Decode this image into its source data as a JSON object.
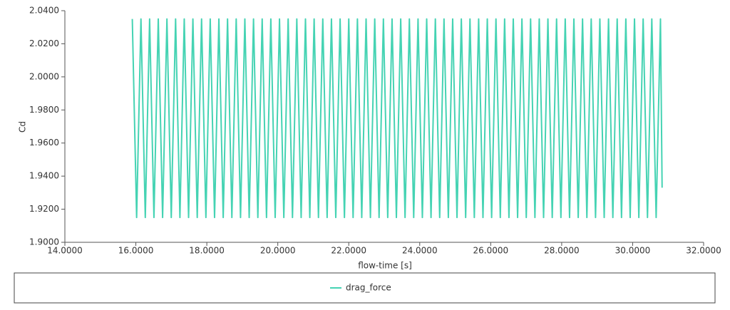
{
  "chart_data": {
    "type": "line",
    "x_label": "flow-time [s]",
    "y_label": "Cd",
    "x": [
      15.9,
      16.022,
      16.144,
      16.266,
      16.388,
      16.51,
      16.632,
      16.754,
      16.876,
      16.998,
      17.12,
      17.242,
      17.364,
      17.486,
      17.608,
      17.73,
      17.852,
      17.974,
      18.096,
      18.218,
      18.34,
      18.462,
      18.584,
      18.706,
      18.828,
      18.95,
      19.072,
      19.194,
      19.316,
      19.438,
      19.56,
      19.682,
      19.804,
      19.926,
      20.048,
      20.17,
      20.292,
      20.414,
      20.536,
      20.658,
      20.78,
      20.902,
      21.024,
      21.146,
      21.268,
      21.39,
      21.512,
      21.634,
      21.756,
      21.878,
      22.0,
      22.122,
      22.244,
      22.366,
      22.488,
      22.61,
      22.732,
      22.854,
      22.976,
      23.098,
      23.22,
      23.342,
      23.464,
      23.586,
      23.708,
      23.83,
      23.952,
      24.074,
      24.196,
      24.318,
      24.44,
      24.562,
      24.684,
      24.806,
      24.928,
      25.05,
      25.172,
      25.294,
      25.416,
      25.538,
      25.66,
      25.782,
      25.904,
      26.026,
      26.148,
      26.27,
      26.392,
      26.514,
      26.636,
      26.758,
      26.88,
      27.002,
      27.124,
      27.246,
      27.368,
      27.49,
      27.612,
      27.734,
      27.856,
      27.978,
      28.1,
      28.222,
      28.344,
      28.466,
      28.588,
      28.71,
      28.832,
      28.954,
      29.076,
      29.198,
      29.32,
      29.442,
      29.564,
      29.686,
      29.808,
      29.93,
      30.052,
      30.174,
      30.296,
      30.418,
      30.54,
      30.662,
      30.784,
      30.83
    ],
    "series": [
      {
        "name": "drag_force",
        "color": "#45d3b3",
        "values": [
          2.035,
          1.915,
          2.035,
          1.915,
          2.035,
          1.915,
          2.035,
          1.915,
          2.035,
          1.915,
          2.035,
          1.915,
          2.035,
          1.915,
          2.035,
          1.915,
          2.035,
          1.915,
          2.035,
          1.915,
          2.035,
          1.915,
          2.035,
          1.915,
          2.035,
          1.915,
          2.035,
          1.915,
          2.035,
          1.915,
          2.035,
          1.915,
          2.035,
          1.915,
          2.035,
          1.915,
          2.035,
          1.915,
          2.035,
          1.915,
          2.035,
          1.915,
          2.035,
          1.915,
          2.035,
          1.915,
          2.035,
          1.915,
          2.035,
          1.915,
          2.035,
          1.915,
          2.035,
          1.915,
          2.035,
          1.915,
          2.035,
          1.915,
          2.035,
          1.915,
          2.035,
          1.915,
          2.035,
          1.915,
          2.035,
          1.915,
          2.035,
          1.915,
          2.035,
          1.915,
          2.035,
          1.915,
          2.035,
          1.915,
          2.035,
          1.915,
          2.035,
          1.915,
          2.035,
          1.915,
          2.035,
          1.915,
          2.035,
          1.915,
          2.035,
          1.915,
          2.035,
          1.915,
          2.035,
          1.915,
          2.035,
          1.915,
          2.035,
          1.915,
          2.035,
          1.915,
          2.035,
          1.915,
          2.035,
          1.915,
          2.035,
          1.915,
          2.035,
          1.915,
          2.035,
          1.915,
          2.035,
          1.915,
          2.035,
          1.915,
          2.035,
          1.915,
          2.035,
          1.915,
          2.035,
          1.915,
          2.035,
          1.915,
          2.035,
          1.915,
          2.035,
          1.915,
          2.035,
          1.933
        ]
      }
    ],
    "xlim": [
      14,
      32
    ],
    "xticks": [
      {
        "value": 14,
        "label": "14.0000"
      },
      {
        "value": 16,
        "label": "16.0000"
      },
      {
        "value": 18,
        "label": "18.0000"
      },
      {
        "value": 20,
        "label": "20.0000"
      },
      {
        "value": 22,
        "label": "22.0000"
      },
      {
        "value": 24,
        "label": "24.0000"
      },
      {
        "value": 26,
        "label": "26.0000"
      },
      {
        "value": 28,
        "label": "28.0000"
      },
      {
        "value": 30,
        "label": "30.0000"
      },
      {
        "value": 32,
        "label": "32.0000"
      }
    ],
    "ylim": [
      1.9,
      2.04
    ],
    "yticks": [
      {
        "value": 1.9,
        "label": "1.9000"
      },
      {
        "value": 1.92,
        "label": "1.9200"
      },
      {
        "value": 1.94,
        "label": "1.9400"
      },
      {
        "value": 1.96,
        "label": "1.9600"
      },
      {
        "value": 1.98,
        "label": "1.9800"
      },
      {
        "value": 2.0,
        "label": "2.0000"
      },
      {
        "value": 2.02,
        "label": "2.0200"
      },
      {
        "value": 2.04,
        "label": "2.0400"
      }
    ],
    "grid": false,
    "legend": "bottom"
  }
}
